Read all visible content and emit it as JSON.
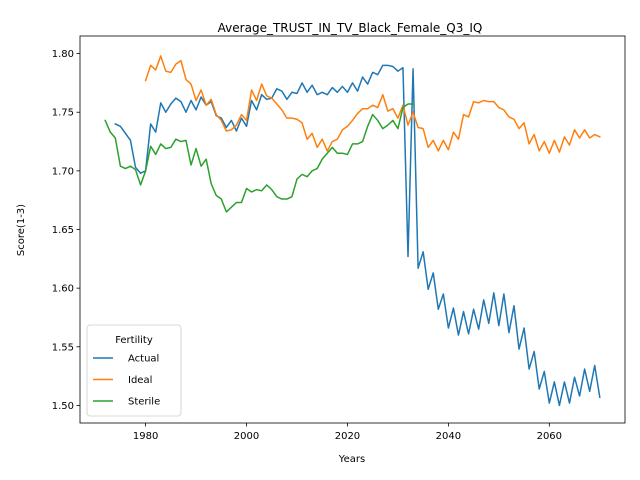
{
  "chart_data": {
    "type": "line",
    "title": "Average_TRUST_IN_TV_Black_Female_Q3_IQ",
    "xlabel": "Years",
    "ylabel": "Score(1-3)",
    "xlim": [
      1967,
      2075
    ],
    "ylim": [
      1.485,
      1.815
    ],
    "xticks": [
      1980,
      2000,
      2020,
      2040,
      2060
    ],
    "yticks": [
      1.5,
      1.55,
      1.6,
      1.65,
      1.7,
      1.75,
      1.8
    ],
    "xtick_labels": [
      "1980",
      "2000",
      "2020",
      "2040",
      "2060"
    ],
    "ytick_labels": [
      "1.50",
      "1.55",
      "1.60",
      "1.65",
      "1.70",
      "1.75",
      "1.80"
    ],
    "grid": false,
    "legend": {
      "title": "Fertility",
      "placement": "lower-left"
    },
    "series": [
      {
        "name": "Actual",
        "color": "#1f77b4",
        "x": [
          1974,
          1975,
          1976,
          1977,
          1978,
          1979,
          1980,
          1981,
          1982,
          1983,
          1984,
          1985,
          1986,
          1987,
          1988,
          1989,
          1990,
          1991,
          1992,
          1993,
          1994,
          1995,
          1996,
          1997,
          1998,
          1999,
          2000,
          2001,
          2002,
          2003,
          2004,
          2005,
          2006,
          2007,
          2008,
          2009,
          2010,
          2011,
          2012,
          2013,
          2014,
          2015,
          2016,
          2017,
          2018,
          2019,
          2020,
          2021,
          2022,
          2023,
          2024,
          2025,
          2026,
          2027,
          2028,
          2029,
          2030,
          2031,
          2032,
          2033,
          2034,
          2035,
          2036,
          2037,
          2038,
          2039,
          2040,
          2041,
          2042,
          2043,
          2044,
          2045,
          2046,
          2047,
          2048,
          2049,
          2050,
          2051,
          2052,
          2053,
          2054,
          2055,
          2056,
          2057,
          2058,
          2059,
          2060,
          2061,
          2062,
          2063,
          2064,
          2065,
          2066,
          2067,
          2068,
          2069,
          2070
        ],
        "y": [
          1.74,
          1.738,
          1.732,
          1.726,
          1.703,
          1.698,
          1.7,
          1.74,
          1.733,
          1.758,
          1.75,
          1.757,
          1.762,
          1.759,
          1.75,
          1.76,
          1.752,
          1.763,
          1.756,
          1.759,
          1.747,
          1.745,
          1.737,
          1.743,
          1.734,
          1.745,
          1.738,
          1.76,
          1.752,
          1.765,
          1.761,
          1.762,
          1.77,
          1.768,
          1.761,
          1.767,
          1.766,
          1.775,
          1.767,
          1.773,
          1.765,
          1.767,
          1.765,
          1.771,
          1.767,
          1.772,
          1.767,
          1.775,
          1.768,
          1.78,
          1.774,
          1.784,
          1.782,
          1.79,
          1.79,
          1.789,
          1.785,
          1.788,
          1.627,
          1.787,
          1.617,
          1.631,
          1.599,
          1.613,
          1.582,
          1.595,
          1.566,
          1.583,
          1.56,
          1.58,
          1.561,
          1.582,
          1.565,
          1.59,
          1.57,
          1.596,
          1.568,
          1.595,
          1.562,
          1.585,
          1.548,
          1.566,
          1.531,
          1.546,
          1.514,
          1.529,
          1.502,
          1.52,
          1.5,
          1.52,
          1.502,
          1.524,
          1.508,
          1.531,
          1.512,
          1.534,
          1.507
        ]
      },
      {
        "name": "Ideal",
        "color": "#ff7f0e",
        "x": [
          1980,
          1981,
          1982,
          1983,
          1984,
          1985,
          1986,
          1987,
          1988,
          1989,
          1990,
          1991,
          1992,
          1993,
          1994,
          1995,
          1996,
          1997,
          1998,
          1999,
          2000,
          2001,
          2002,
          2003,
          2004,
          2005,
          2006,
          2007,
          2008,
          2009,
          2010,
          2011,
          2012,
          2013,
          2014,
          2015,
          2016,
          2017,
          2018,
          2019,
          2020,
          2021,
          2022,
          2023,
          2024,
          2025,
          2026,
          2027,
          2028,
          2029,
          2030,
          2031,
          2032,
          2033,
          2034,
          2035,
          2036,
          2037,
          2038,
          2039,
          2040,
          2041,
          2042,
          2043,
          2044,
          2045,
          2046,
          2047,
          2048,
          2049,
          2050,
          2051,
          2052,
          2053,
          2054,
          2055,
          2056,
          2057,
          2058,
          2059,
          2060,
          2061,
          2062,
          2063,
          2064,
          2065,
          2066,
          2067,
          2068,
          2069,
          2070
        ],
        "y": [
          1.777,
          1.79,
          1.786,
          1.798,
          1.785,
          1.784,
          1.791,
          1.794,
          1.778,
          1.774,
          1.76,
          1.769,
          1.756,
          1.761,
          1.748,
          1.743,
          1.734,
          1.735,
          1.739,
          1.748,
          1.743,
          1.769,
          1.76,
          1.774,
          1.764,
          1.762,
          1.757,
          1.752,
          1.745,
          1.745,
          1.744,
          1.741,
          1.727,
          1.732,
          1.72,
          1.727,
          1.717,
          1.725,
          1.727,
          1.735,
          1.738,
          1.743,
          1.749,
          1.753,
          1.753,
          1.756,
          1.754,
          1.765,
          1.751,
          1.753,
          1.745,
          1.756,
          1.739,
          1.75,
          1.737,
          1.736,
          1.72,
          1.726,
          1.717,
          1.726,
          1.718,
          1.733,
          1.727,
          1.748,
          1.746,
          1.759,
          1.758,
          1.76,
          1.759,
          1.759,
          1.754,
          1.752,
          1.746,
          1.744,
          1.736,
          1.741,
          1.723,
          1.731,
          1.717,
          1.725,
          1.715,
          1.726,
          1.716,
          1.729,
          1.722,
          1.735,
          1.728,
          1.735,
          1.728,
          1.731,
          1.729
        ]
      },
      {
        "name": "Sterile",
        "color": "#2ca02c",
        "x": [
          1972,
          1973,
          1974,
          1975,
          1976,
          1977,
          1978,
          1979,
          1980,
          1981,
          1982,
          1983,
          1984,
          1985,
          1986,
          1987,
          1988,
          1989,
          1990,
          1991,
          1992,
          1993,
          1994,
          1995,
          1996,
          1997,
          1998,
          1999,
          2000,
          2001,
          2002,
          2003,
          2004,
          2005,
          2006,
          2007,
          2008,
          2009,
          2010,
          2011,
          2012,
          2013,
          2014,
          2015,
          2016,
          2017,
          2018,
          2019,
          2020,
          2021,
          2022,
          2023,
          2024,
          2025,
          2026,
          2027,
          2028,
          2029,
          2030,
          2031,
          2032,
          2033
        ],
        "y": [
          1.743,
          1.733,
          1.728,
          1.704,
          1.702,
          1.704,
          1.701,
          1.688,
          1.7,
          1.721,
          1.714,
          1.723,
          1.719,
          1.72,
          1.727,
          1.725,
          1.726,
          1.705,
          1.719,
          1.704,
          1.71,
          1.689,
          1.679,
          1.676,
          1.665,
          1.669,
          1.673,
          1.673,
          1.685,
          1.682,
          1.684,
          1.683,
          1.688,
          1.684,
          1.678,
          1.676,
          1.676,
          1.678,
          1.693,
          1.697,
          1.695,
          1.7,
          1.702,
          1.71,
          1.715,
          1.72,
          1.715,
          1.715,
          1.714,
          1.723,
          1.723,
          1.725,
          1.738,
          1.748,
          1.743,
          1.736,
          1.739,
          1.743,
          1.736,
          1.754,
          1.757,
          1.757
        ]
      }
    ]
  }
}
